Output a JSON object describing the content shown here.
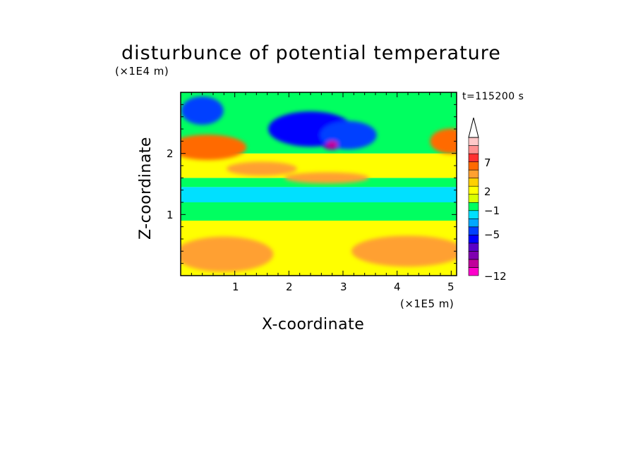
{
  "chart_data": {
    "type": "heatmap",
    "title": "disturbunce of potential temperature",
    "xlabel": "X-coordinate",
    "ylabel": "Z-coordinate",
    "x_unit": "(×1E5 m)",
    "z_unit": "(×1E4 m)",
    "time_label": "t=115200 s",
    "xlim": [
      0,
      5.1
    ],
    "ylim": [
      0,
      3.0
    ],
    "x_ticks": [
      "1",
      "2",
      "3",
      "4",
      "5"
    ],
    "y_ticks": [
      "1",
      "2"
    ],
    "colorbar": {
      "tick_labels": [
        "7",
        "2",
        "−1",
        "−5",
        "−12"
      ],
      "levels": [
        -12,
        -9,
        -7,
        -5,
        -4,
        -3,
        -2,
        -1,
        0,
        1,
        2,
        3,
        5,
        7,
        9,
        11
      ],
      "colors": [
        "#ff00cc",
        "#c0009a",
        "#8000b0",
        "#5a00c8",
        "#0000ff",
        "#0040ff",
        "#00a8ff",
        "#00e0ff",
        "#00ff60",
        "#d8ff00",
        "#ffff00",
        "#ffd000",
        "#ffa030",
        "#ff6a00",
        "#ff3030",
        "#ff9090",
        "#ffc8c8"
      ]
    },
    "features": [
      {
        "x": 2.8,
        "z": 2.15,
        "value": -8
      },
      {
        "x": 2.4,
        "z": 2.4,
        "value": -5
      },
      {
        "x": 3.1,
        "z": 2.3,
        "value": -4
      },
      {
        "x": 0.4,
        "z": 2.7,
        "value": -4
      },
      {
        "x": 1.5,
        "z": 1.75,
        "value": 3
      },
      {
        "x": 0.5,
        "z": 2.1,
        "value": 5
      },
      {
        "x": 5.0,
        "z": 2.2,
        "value": 5
      },
      {
        "x": 2.7,
        "z": 1.6,
        "value": 4
      },
      {
        "x": 0.8,
        "z": 0.35,
        "value": 3
      },
      {
        "x": 4.2,
        "z": 0.4,
        "value": 3
      }
    ]
  }
}
